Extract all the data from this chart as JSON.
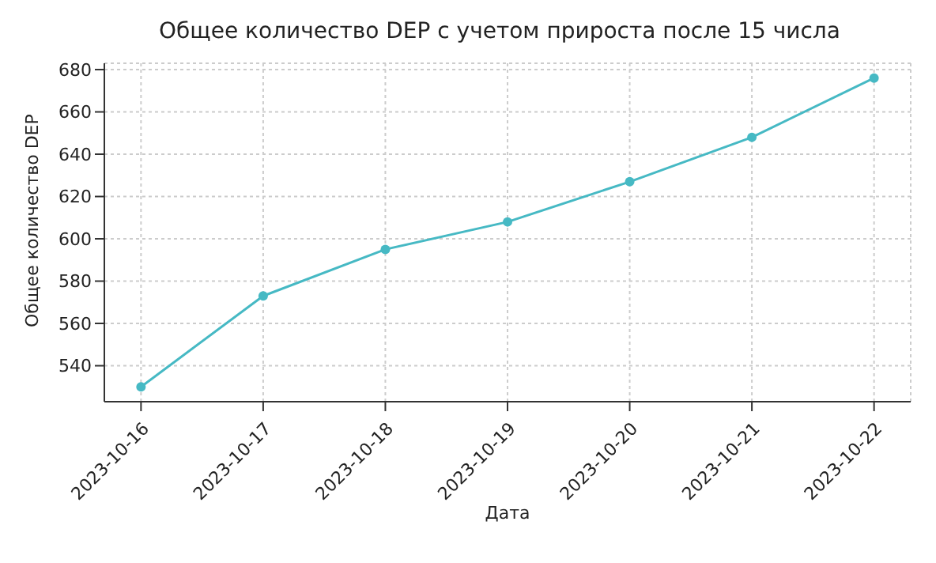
{
  "chart_data": {
    "type": "line",
    "title": "Общее количество DEP с учетом прироста после 15 числа",
    "xlabel": "Дата",
    "ylabel": "Общее количество DEP",
    "categories": [
      "2023-10-16",
      "2023-10-17",
      "2023-10-18",
      "2023-10-19",
      "2023-10-20",
      "2023-10-21",
      "2023-10-22"
    ],
    "series": [
      {
        "color": "#46b9c4",
        "values": [
          530,
          573,
          595,
          608,
          627,
          648,
          676
        ]
      }
    ],
    "ylim": [
      523,
      683
    ],
    "yticks": [
      540,
      560,
      580,
      600,
      620,
      640,
      660,
      680
    ],
    "grid": true,
    "marker": "circle",
    "line_style": "solid"
  }
}
